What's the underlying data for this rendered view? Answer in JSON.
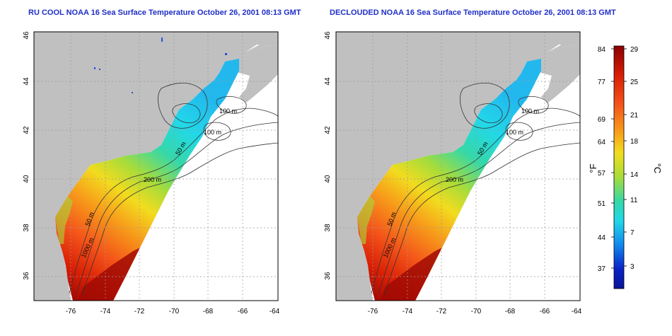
{
  "panels": [
    {
      "title": "RU COOL NOAA 16 Sea Surface Temperature October 26, 2001 08:13 GMT",
      "contour_labels": [
        "100 m",
        "100 m",
        "50 m",
        "200 m",
        "50 m",
        "1000 m"
      ]
    },
    {
      "title": "DECLOUDED NOAA 16 Sea Surface Temperature October 26, 2001 08:13 GMT",
      "contour_labels": [
        "100 m",
        "100 m",
        "50 m",
        "200 m",
        "50 m",
        "1000 m"
      ]
    }
  ],
  "axes": {
    "lat_ticks": [
      "36",
      "38",
      "40",
      "42",
      "44",
      "46"
    ],
    "lon_ticks": [
      "-76",
      "-74",
      "-72",
      "-70",
      "-68",
      "-66",
      "-64"
    ]
  },
  "colorbar": {
    "fahrenheit_label": "°F",
    "celsius_label": "°C",
    "fahrenheit_ticks": [
      "84",
      "77",
      "69",
      "64",
      "57",
      "51",
      "44",
      "37"
    ],
    "celsius_ticks": [
      "29",
      "25",
      "21",
      "18",
      "14",
      "11",
      "7",
      "3"
    ]
  },
  "colors": {
    "land": "#c0c0c0",
    "title": "#1f2fc8",
    "gradient": [
      "#8b0000",
      "#d81e05",
      "#f4541a",
      "#f7a11a",
      "#f2dc1f",
      "#a8dc3a",
      "#35d8a8",
      "#22d8e8",
      "#1188ee",
      "#0a22c8",
      "#0a1495"
    ]
  }
}
